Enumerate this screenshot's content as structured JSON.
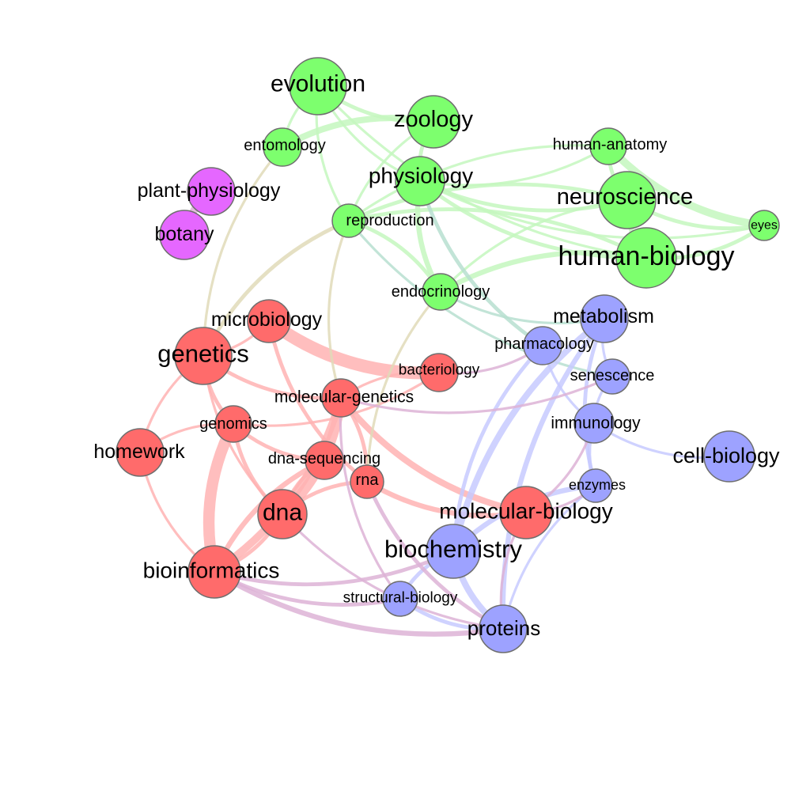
{
  "colors": {
    "red": "#ff6b6b",
    "green": "#7dff6e",
    "blue": "#9da2ff",
    "magenta": "#e567ff",
    "edge_red": "#ffb3b3",
    "edge_green": "#c4f7be",
    "edge_blue": "#c7caff",
    "edge_olive": "#e0dbb8",
    "edge_mauve": "#ddb3d6",
    "edge_teal": "#b7dfd0"
  },
  "nodes": [
    {
      "id": "evolution",
      "label": "evolution",
      "color": "green"
    },
    {
      "id": "zoology",
      "label": "zoology",
      "color": "green"
    },
    {
      "id": "entomology",
      "label": "entomology",
      "color": "green"
    },
    {
      "id": "human-anatomy",
      "label": "human-anatomy",
      "color": "green"
    },
    {
      "id": "physiology",
      "label": "physiology",
      "color": "green"
    },
    {
      "id": "neuroscience",
      "label": "neuroscience",
      "color": "green"
    },
    {
      "id": "eyes",
      "label": "eyes",
      "color": "green"
    },
    {
      "id": "reproduction",
      "label": "reproduction",
      "color": "green"
    },
    {
      "id": "human-biology",
      "label": "human-biology",
      "color": "green"
    },
    {
      "id": "endocrinology",
      "label": "endocrinology",
      "color": "green"
    },
    {
      "id": "plant-physiology",
      "label": "plant-physiology",
      "color": "magenta"
    },
    {
      "id": "botany",
      "label": "botany",
      "color": "magenta"
    },
    {
      "id": "microbiology",
      "label": "microbiology",
      "color": "red"
    },
    {
      "id": "genetics",
      "label": "genetics",
      "color": "red"
    },
    {
      "id": "bacteriology",
      "label": "bacteriology",
      "color": "red"
    },
    {
      "id": "molecular-genetics",
      "label": "molecular-genetics",
      "color": "red"
    },
    {
      "id": "genomics",
      "label": "genomics",
      "color": "red"
    },
    {
      "id": "homework",
      "label": "homework",
      "color": "red"
    },
    {
      "id": "dna-sequencing",
      "label": "dna-sequencing",
      "color": "red"
    },
    {
      "id": "rna",
      "label": "rna",
      "color": "red"
    },
    {
      "id": "dna",
      "label": "dna",
      "color": "red"
    },
    {
      "id": "molecular-biology",
      "label": "molecular-biology",
      "color": "red"
    },
    {
      "id": "bioinformatics",
      "label": "bioinformatics",
      "color": "red"
    },
    {
      "id": "metabolism",
      "label": "metabolism",
      "color": "blue"
    },
    {
      "id": "pharmacology",
      "label": "pharmacology",
      "color": "blue"
    },
    {
      "id": "senescence",
      "label": "senescence",
      "color": "blue"
    },
    {
      "id": "immunology",
      "label": "immunology",
      "color": "blue"
    },
    {
      "id": "cell-biology",
      "label": "cell-biology",
      "color": "blue"
    },
    {
      "id": "enzymes",
      "label": "enzymes",
      "color": "blue"
    },
    {
      "id": "biochemistry",
      "label": "biochemistry",
      "color": "blue"
    },
    {
      "id": "structural-biology",
      "label": "structural-biology",
      "color": "blue"
    },
    {
      "id": "proteins",
      "label": "proteins",
      "color": "blue"
    }
  ],
  "edges": [
    {
      "source": "microbiology",
      "target": "bacteriology",
      "weight": 10,
      "color": "edge_red"
    },
    {
      "source": "dna",
      "target": "molecular-genetics",
      "weight": 8,
      "color": "edge_red"
    },
    {
      "source": "genomics",
      "target": "bioinformatics",
      "weight": 9,
      "color": "edge_red"
    },
    {
      "source": "bioinformatics",
      "target": "molecular-genetics",
      "weight": 6,
      "color": "edge_red"
    },
    {
      "source": "molecular-genetics",
      "target": "molecular-biology",
      "weight": 5,
      "color": "edge_red"
    },
    {
      "source": "genetics",
      "target": "molecular-genetics",
      "weight": 3,
      "color": "edge_red"
    },
    {
      "source": "genetics",
      "target": "genomics",
      "weight": 3,
      "color": "edge_red"
    },
    {
      "source": "genetics",
      "target": "homework",
      "weight": 2,
      "color": "edge_red"
    },
    {
      "source": "genetics",
      "target": "dna",
      "weight": 2,
      "color": "edge_red"
    },
    {
      "source": "genetics",
      "target": "microbiology",
      "weight": 2,
      "color": "edge_red"
    },
    {
      "source": "genomics",
      "target": "dna-sequencing",
      "weight": 3,
      "color": "edge_red"
    },
    {
      "source": "genomics",
      "target": "dna",
      "weight": 3,
      "color": "edge_red"
    },
    {
      "source": "genomics",
      "target": "homework",
      "weight": 2,
      "color": "edge_red"
    },
    {
      "source": "genomics",
      "target": "bacteriology",
      "weight": 2,
      "color": "edge_red"
    },
    {
      "source": "dna-sequencing",
      "target": "bioinformatics",
      "weight": 4,
      "color": "edge_red"
    },
    {
      "source": "dna-sequencing",
      "target": "dna",
      "weight": 3,
      "color": "edge_red"
    },
    {
      "source": "rna",
      "target": "molecular-biology",
      "weight": 4,
      "color": "edge_red"
    },
    {
      "source": "rna",
      "target": "dna",
      "weight": 3,
      "color": "edge_red"
    },
    {
      "source": "rna",
      "target": "molecular-genetics",
      "weight": 3,
      "color": "edge_red"
    },
    {
      "source": "microbiology",
      "target": "rna",
      "weight": 3,
      "color": "edge_red"
    },
    {
      "source": "bioinformatics",
      "target": "dna",
      "weight": 3,
      "color": "edge_red"
    },
    {
      "source": "bacteriology",
      "target": "molecular-genetics",
      "weight": 2,
      "color": "edge_red"
    },
    {
      "source": "homework",
      "target": "bioinformatics",
      "weight": 2,
      "color": "edge_red"
    },
    {
      "source": "evolution",
      "target": "zoology",
      "weight": 3,
      "color": "edge_green"
    },
    {
      "source": "evolution",
      "target": "entomology",
      "weight": 2,
      "color": "edge_green"
    },
    {
      "source": "evolution",
      "target": "physiology",
      "weight": 2,
      "color": "edge_green"
    },
    {
      "source": "evolution",
      "target": "reproduction",
      "weight": 2,
      "color": "edge_green"
    },
    {
      "source": "evolution",
      "target": "human-biology",
      "weight": 2,
      "color": "edge_green"
    },
    {
      "source": "zoology",
      "target": "entomology",
      "weight": 5,
      "color": "edge_green"
    },
    {
      "source": "zoology",
      "target": "physiology",
      "weight": 3,
      "color": "edge_green"
    },
    {
      "source": "zoology",
      "target": "reproduction",
      "weight": 2,
      "color": "edge_green"
    },
    {
      "source": "physiology",
      "target": "neuroscience",
      "weight": 3,
      "color": "edge_green"
    },
    {
      "source": "physiology",
      "target": "human-biology",
      "weight": 3,
      "color": "edge_green"
    },
    {
      "source": "physiology",
      "target": "endocrinology",
      "weight": 4,
      "color": "edge_green"
    },
    {
      "source": "physiology",
      "target": "eyes",
      "weight": 2,
      "color": "edge_green"
    },
    {
      "source": "physiology",
      "target": "human-anatomy",
      "weight": 2,
      "color": "edge_green"
    },
    {
      "source": "human-anatomy",
      "target": "eyes",
      "weight": 6,
      "color": "edge_green"
    },
    {
      "source": "human-anatomy",
      "target": "neuroscience",
      "weight": 3,
      "color": "edge_green"
    },
    {
      "source": "human-anatomy",
      "target": "reproduction",
      "weight": 2,
      "color": "edge_green"
    },
    {
      "source": "neuroscience",
      "target": "eyes",
      "weight": 3,
      "color": "edge_green"
    },
    {
      "source": "neuroscience",
      "target": "reproduction",
      "weight": 3,
      "color": "edge_green"
    },
    {
      "source": "neuroscience",
      "target": "human-biology",
      "weight": 4,
      "color": "edge_green"
    },
    {
      "source": "neuroscience",
      "target": "endocrinology",
      "weight": 2,
      "color": "edge_green"
    },
    {
      "source": "human-biology",
      "target": "eyes",
      "weight": 3,
      "color": "edge_green"
    },
    {
      "source": "human-biology",
      "target": "endocrinology",
      "weight": 4,
      "color": "edge_green"
    },
    {
      "source": "human-biology",
      "target": "reproduction",
      "weight": 3,
      "color": "edge_green"
    },
    {
      "source": "endocrinology",
      "target": "reproduction",
      "weight": 3,
      "color": "edge_green"
    },
    {
      "source": "plant-physiology",
      "target": "botany",
      "weight": 6,
      "color": "edge_mauve"
    },
    {
      "source": "entomology",
      "target": "genetics",
      "weight": 2,
      "color": "edge_olive"
    },
    {
      "source": "reproduction",
      "target": "genetics",
      "weight": 3,
      "color": "edge_olive"
    },
    {
      "source": "reproduction",
      "target": "molecular-genetics",
      "weight": 2,
      "color": "edge_olive"
    },
    {
      "source": "endocrinology",
      "target": "rna",
      "weight": 2,
      "color": "edge_olive"
    },
    {
      "source": "physiology",
      "target": "pharmacology",
      "weight": 3,
      "color": "edge_teal"
    },
    {
      "source": "reproduction",
      "target": "senescence",
      "weight": 2,
      "color": "edge_teal"
    },
    {
      "source": "endocrinology",
      "target": "metabolism",
      "weight": 2,
      "color": "edge_teal"
    },
    {
      "source": "metabolism",
      "target": "biochemistry",
      "weight": 5,
      "color": "edge_blue"
    },
    {
      "source": "metabolism",
      "target": "enzymes",
      "weight": 3,
      "color": "edge_blue"
    },
    {
      "source": "metabolism",
      "target": "proteins",
      "weight": 4,
      "color": "edge_blue"
    },
    {
      "source": "metabolism",
      "target": "senescence",
      "weight": 2,
      "color": "edge_blue"
    },
    {
      "source": "pharmacology",
      "target": "biochemistry",
      "weight": 3,
      "color": "edge_blue"
    },
    {
      "source": "pharmacology",
      "target": "immunology",
      "weight": 2,
      "color": "edge_blue"
    },
    {
      "source": "immunology",
      "target": "cell-biology",
      "weight": 2,
      "color": "edge_blue"
    },
    {
      "source": "immunology",
      "target": "enzymes",
      "weight": 3,
      "color": "edge_blue"
    },
    {
      "source": "enzymes",
      "target": "biochemistry",
      "weight": 4,
      "color": "edge_blue"
    },
    {
      "source": "enzymes",
      "target": "proteins",
      "weight": 2,
      "color": "edge_blue"
    },
    {
      "source": "biochemistry",
      "target": "proteins",
      "weight": 5,
      "color": "edge_blue"
    },
    {
      "source": "biochemistry",
      "target": "structural-biology",
      "weight": 3,
      "color": "edge_blue"
    },
    {
      "source": "structural-biology",
      "target": "proteins",
      "weight": 3,
      "color": "edge_blue"
    },
    {
      "source": "senescence",
      "target": "immunology",
      "weight": 2,
      "color": "edge_blue"
    },
    {
      "source": "bacteriology",
      "target": "pharmacology",
      "weight": 2,
      "color": "edge_mauve"
    },
    {
      "source": "molecular-genetics",
      "target": "senescence",
      "weight": 2,
      "color": "edge_mauve"
    },
    {
      "source": "bioinformatics",
      "target": "proteins",
      "weight": 4,
      "color": "edge_mauve"
    },
    {
      "source": "bioinformatics",
      "target": "structural-biology",
      "weight": 3,
      "color": "edge_mauve"
    },
    {
      "source": "bioinformatics",
      "target": "biochemistry",
      "weight": 3,
      "color": "edge_mauve"
    },
    {
      "source": "dna",
      "target": "proteins",
      "weight": 2,
      "color": "edge_mauve"
    },
    {
      "source": "rna",
      "target": "proteins",
      "weight": 3,
      "color": "edge_mauve"
    },
    {
      "source": "molecular-genetics",
      "target": "structural-biology",
      "weight": 2,
      "color": "edge_mauve"
    },
    {
      "source": "molecular-biology",
      "target": "proteins",
      "weight": 2,
      "color": "edge_mauve"
    },
    {
      "source": "molecular-biology",
      "target": "immunology",
      "weight": 2,
      "color": "edge_mauve"
    },
    {
      "source": "molecular-biology",
      "target": "enzymes",
      "weight": 2,
      "color": "edge_mauve"
    }
  ]
}
